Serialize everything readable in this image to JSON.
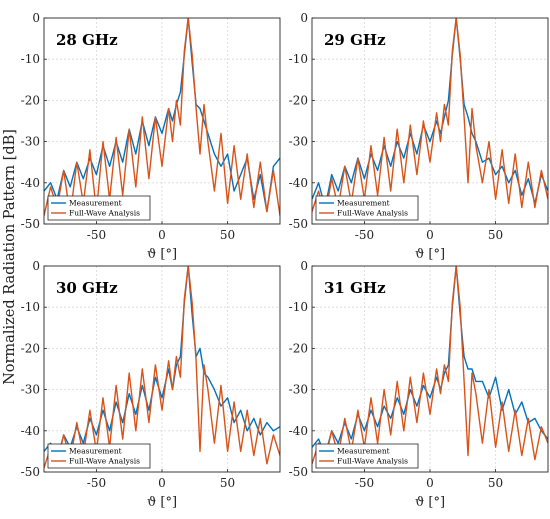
{
  "figure": {
    "ylabel": "Normalized Radiation Pattern [dB]",
    "xlabel": "ϑ [°]",
    "colors": {
      "measurement": "#0072BD",
      "fullwave": "#D95319",
      "grid": "#d9d9d9"
    }
  },
  "chart_data": [
    {
      "type": "line",
      "title": "28 GHz",
      "xlabel": "ϑ [°]",
      "ylabel": "Normalized Radiation Pattern [dB]",
      "xlim": [
        -90,
        90
      ],
      "ylim": [
        -50,
        0
      ],
      "xticks": [
        -50,
        0,
        50
      ],
      "yticks": [
        0,
        -10,
        -20,
        -30,
        -40,
        -50
      ],
      "grid": true,
      "legend_position": "bottom-left",
      "series": [
        {
          "name": "Measurement",
          "x": [
            -90,
            -85,
            -80,
            -75,
            -70,
            -65,
            -60,
            -55,
            -50,
            -45,
            -40,
            -35,
            -30,
            -25,
            -20,
            -15,
            -10,
            -5,
            0,
            5,
            8,
            11,
            14,
            17,
            20,
            23,
            26,
            29,
            32,
            35,
            40,
            45,
            50,
            55,
            60,
            65,
            70,
            75,
            80,
            85,
            90
          ],
          "y": [
            -42,
            -40,
            -44,
            -37,
            -41,
            -35,
            -39,
            -34,
            -38,
            -31,
            -36,
            -30,
            -35,
            -27,
            -33,
            -25,
            -31,
            -24,
            -28,
            -22,
            -25,
            -21,
            -18,
            -9,
            0,
            -11,
            -21,
            -22,
            -25,
            -28,
            -33,
            -36,
            -33,
            -42,
            -38,
            -34,
            -44,
            -38,
            -47,
            -36,
            -34
          ]
        },
        {
          "name": "Full-Wave Analysis",
          "x": [
            -90,
            -85,
            -80,
            -75,
            -70,
            -65,
            -60,
            -55,
            -50,
            -45,
            -40,
            -35,
            -30,
            -25,
            -20,
            -15,
            -10,
            -5,
            0,
            5,
            8,
            11,
            14,
            17,
            20,
            23,
            26,
            29,
            32,
            35,
            40,
            45,
            50,
            55,
            60,
            65,
            70,
            75,
            80,
            85,
            90
          ],
          "y": [
            -48,
            -41,
            -46,
            -37,
            -48,
            -35,
            -45,
            -32,
            -47,
            -30,
            -44,
            -29,
            -43,
            -27,
            -41,
            -24,
            -39,
            -24,
            -36,
            -22,
            -30,
            -20,
            -26,
            -8,
            0,
            -9,
            -22,
            -33,
            -21,
            -30,
            -42,
            -28,
            -45,
            -31,
            -44,
            -33,
            -46,
            -35,
            -47,
            -37,
            -48
          ]
        }
      ]
    },
    {
      "type": "line",
      "title": "29 GHz",
      "xlabel": "ϑ [°]",
      "ylabel": "",
      "xlim": [
        -90,
        90
      ],
      "ylim": [
        -50,
        0
      ],
      "xticks": [
        -50,
        0,
        50
      ],
      "yticks": [
        0,
        -10,
        -20,
        -30,
        -40,
        -50
      ],
      "grid": true,
      "legend_position": "bottom-left",
      "series": [
        {
          "name": "Measurement",
          "x": [
            -90,
            -85,
            -80,
            -75,
            -70,
            -65,
            -60,
            -55,
            -50,
            -45,
            -40,
            -35,
            -30,
            -25,
            -20,
            -15,
            -10,
            -5,
            0,
            5,
            8,
            11,
            14,
            17,
            20,
            23,
            26,
            29,
            32,
            35,
            40,
            45,
            50,
            55,
            60,
            65,
            70,
            75,
            80,
            85,
            90
          ],
          "y": [
            -44,
            -40,
            -46,
            -38,
            -42,
            -36,
            -40,
            -34,
            -39,
            -33,
            -37,
            -31,
            -36,
            -30,
            -34,
            -28,
            -33,
            -26,
            -30,
            -25,
            -28,
            -24,
            -20,
            -9,
            0,
            -10,
            -21,
            -24,
            -28,
            -30,
            -35,
            -34,
            -38,
            -36,
            -40,
            -37,
            -43,
            -39,
            -45,
            -38,
            -42
          ]
        },
        {
          "name": "Full-Wave Analysis",
          "x": [
            -90,
            -85,
            -80,
            -75,
            -70,
            -65,
            -60,
            -55,
            -50,
            -45,
            -40,
            -35,
            -30,
            -25,
            -20,
            -15,
            -10,
            -5,
            0,
            5,
            8,
            11,
            14,
            17,
            20,
            23,
            26,
            29,
            32,
            35,
            40,
            45,
            50,
            55,
            60,
            65,
            70,
            75,
            80,
            85,
            90
          ],
          "y": [
            -47,
            -42,
            -48,
            -39,
            -46,
            -36,
            -45,
            -34,
            -44,
            -31,
            -43,
            -29,
            -42,
            -27,
            -40,
            -26,
            -38,
            -25,
            -35,
            -23,
            -30,
            -21,
            -26,
            -8,
            0,
            -9,
            -24,
            -40,
            -22,
            -31,
            -40,
            -30,
            -44,
            -32,
            -45,
            -33,
            -46,
            -35,
            -46,
            -37,
            -44
          ]
        }
      ]
    },
    {
      "type": "line",
      "title": "30 GHz",
      "xlabel": "ϑ [°]",
      "ylabel": "Normalized Radiation Pattern [dB]",
      "xlim": [
        -90,
        90
      ],
      "ylim": [
        -50,
        0
      ],
      "xticks": [
        -50,
        0,
        50
      ],
      "yticks": [
        0,
        -10,
        -20,
        -30,
        -40,
        -50
      ],
      "grid": true,
      "legend_position": "bottom-left",
      "series": [
        {
          "name": "Measurement",
          "x": [
            -90,
            -85,
            -80,
            -75,
            -70,
            -65,
            -60,
            -55,
            -50,
            -45,
            -40,
            -35,
            -30,
            -25,
            -20,
            -15,
            -10,
            -5,
            0,
            5,
            8,
            11,
            14,
            17,
            20,
            23,
            26,
            29,
            32,
            35,
            40,
            45,
            50,
            55,
            60,
            65,
            70,
            75,
            80,
            85,
            90
          ],
          "y": [
            -45,
            -43,
            -47,
            -41,
            -44,
            -39,
            -43,
            -37,
            -41,
            -35,
            -40,
            -33,
            -38,
            -31,
            -36,
            -29,
            -35,
            -27,
            -32,
            -25,
            -30,
            -24,
            -22,
            -9,
            0,
            -12,
            -22,
            -20,
            -26,
            -27,
            -30,
            -34,
            -32,
            -38,
            -35,
            -40,
            -37,
            -41,
            -38,
            -40,
            -39
          ]
        },
        {
          "name": "Full-Wave Analysis",
          "x": [
            -90,
            -85,
            -80,
            -75,
            -70,
            -65,
            -60,
            -55,
            -50,
            -45,
            -40,
            -35,
            -30,
            -25,
            -20,
            -15,
            -10,
            -5,
            0,
            5,
            8,
            11,
            14,
            17,
            20,
            23,
            26,
            29,
            32,
            35,
            40,
            45,
            50,
            55,
            60,
            65,
            70,
            75,
            80,
            85,
            90
          ],
          "y": [
            -49,
            -44,
            -48,
            -41,
            -47,
            -38,
            -46,
            -35,
            -45,
            -32,
            -44,
            -29,
            -42,
            -26,
            -40,
            -25,
            -38,
            -24,
            -35,
            -23,
            -30,
            -22,
            -27,
            -8,
            0,
            -9,
            -23,
            -45,
            -24,
            -30,
            -43,
            -29,
            -45,
            -33,
            -45,
            -35,
            -46,
            -37,
            -48,
            -41,
            -46
          ]
        }
      ]
    },
    {
      "type": "line",
      "title": "31 GHz",
      "xlabel": "ϑ [°]",
      "ylabel": "",
      "xlim": [
        -90,
        90
      ],
      "ylim": [
        -50,
        0
      ],
      "xticks": [
        -50,
        0,
        50
      ],
      "yticks": [
        0,
        -10,
        -20,
        -30,
        -40,
        -50
      ],
      "grid": true,
      "legend_position": "bottom-left",
      "series": [
        {
          "name": "Measurement",
          "x": [
            -90,
            -85,
            -80,
            -75,
            -70,
            -65,
            -60,
            -55,
            -50,
            -45,
            -40,
            -35,
            -30,
            -25,
            -20,
            -15,
            -10,
            -5,
            0,
            5,
            8,
            11,
            14,
            17,
            20,
            23,
            26,
            29,
            32,
            35,
            40,
            45,
            50,
            55,
            60,
            65,
            70,
            75,
            80,
            85,
            90
          ],
          "y": [
            -44,
            -42,
            -46,
            -40,
            -43,
            -38,
            -42,
            -36,
            -40,
            -35,
            -39,
            -34,
            -37,
            -32,
            -36,
            -30,
            -34,
            -29,
            -32,
            -27,
            -30,
            -26,
            -24,
            -10,
            0,
            -12,
            -22,
            -25,
            -25,
            -28,
            -28,
            -32,
            -27,
            -35,
            -30,
            -36,
            -33,
            -38,
            -37,
            -40,
            -42
          ]
        },
        {
          "name": "Full-Wave Analysis",
          "x": [
            -90,
            -85,
            -80,
            -75,
            -70,
            -65,
            -60,
            -55,
            -50,
            -45,
            -40,
            -35,
            -30,
            -25,
            -20,
            -15,
            -10,
            -5,
            0,
            5,
            8,
            11,
            14,
            17,
            20,
            23,
            26,
            29,
            32,
            35,
            40,
            45,
            50,
            55,
            60,
            65,
            70,
            75,
            80,
            85,
            90
          ],
          "y": [
            -48,
            -43,
            -47,
            -40,
            -46,
            -37,
            -45,
            -35,
            -44,
            -32,
            -43,
            -30,
            -41,
            -28,
            -40,
            -27,
            -38,
            -26,
            -36,
            -25,
            -31,
            -24,
            -28,
            -9,
            0,
            -10,
            -28,
            -46,
            -26,
            -31,
            -43,
            -30,
            -44,
            -33,
            -45,
            -35,
            -46,
            -37,
            -47,
            -39,
            -43
          ]
        }
      ]
    }
  ]
}
